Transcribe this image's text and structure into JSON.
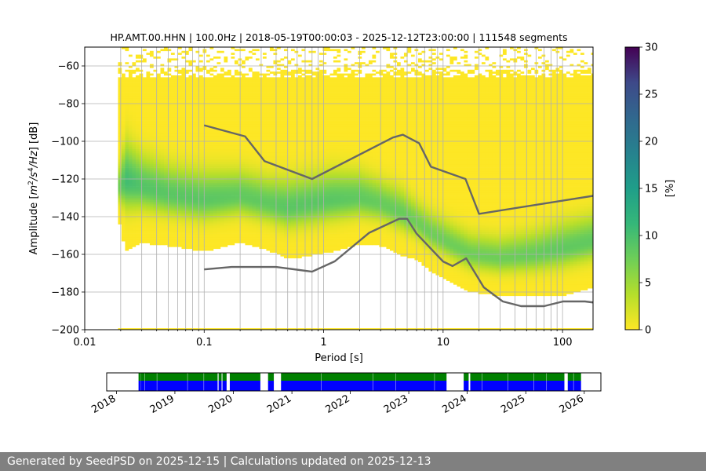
{
  "chart_data": {
    "type": "heatmap",
    "title": "HP.AMT.00.HHN | 100.0Hz | 2018-05-19T00:00:03 - 2025-12-12T23:00:00 | 111548 segments",
    "xlabel": "Period [s]",
    "ylabel_parts": [
      "Amplitude [",
      "m",
      "2",
      "/s",
      "4",
      "/Hz",
      "] [dB]"
    ],
    "x_scale": "log",
    "xlim": [
      0.01,
      180
    ],
    "ylim": [
      -200,
      -50
    ],
    "x_ticks": [
      0.01,
      0.1,
      1,
      10,
      100
    ],
    "x_tick_labels": [
      "0.01",
      "0.1",
      "1",
      "10",
      "100"
    ],
    "y_ticks": [
      -200,
      -180,
      -160,
      -140,
      -120,
      -100,
      -80,
      -60
    ],
    "y_tick_labels": [
      "−200",
      "−180",
      "−160",
      "−140",
      "−120",
      "−100",
      "−80",
      "−60"
    ],
    "grid": true,
    "colorbar": {
      "label": "[%]",
      "range": [
        0,
        30
      ],
      "ticks": [
        0,
        5,
        10,
        15,
        20,
        25,
        30
      ],
      "tick_labels": [
        "0",
        "5",
        "10",
        "15",
        "20",
        "25",
        "30"
      ],
      "colormap": "viridis_r"
    },
    "psd_mode_curve": {
      "period": [
        0.019,
        0.022,
        0.03,
        0.05,
        0.1,
        0.2,
        0.35,
        0.5,
        0.8,
        1.2,
        2,
        3,
        4.5,
        6,
        8,
        12,
        17,
        30,
        60,
        100,
        180
      ],
      "db": [
        -125,
        -121,
        -124,
        -128,
        -131,
        -129,
        -133,
        -135,
        -133,
        -131,
        -130,
        -133,
        -138,
        -143,
        -149,
        -155,
        -160,
        -162,
        -160,
        -157,
        -153
      ]
    },
    "psd_spread_curve": {
      "period": [
        0.019,
        0.022,
        0.03,
        0.05,
        0.1,
        0.2,
        0.35,
        0.5,
        0.8,
        1.2,
        2,
        3,
        4.5,
        6,
        8,
        12,
        17,
        30,
        60,
        100,
        180
      ],
      "hw": [
        6,
        15,
        12,
        11,
        11,
        10,
        10,
        11,
        11,
        11,
        10,
        9,
        9,
        8,
        8,
        8,
        8,
        8,
        9,
        10,
        10
      ]
    },
    "high_noise_model": {
      "period": [
        0.1,
        0.22,
        0.32,
        0.8,
        3.8,
        4.6,
        6.3,
        7.9,
        15.4,
        20,
        354.8
      ],
      "db": [
        -91.5,
        -97.4,
        -110.5,
        -120,
        -98,
        -96.5,
        -101,
        -113.5,
        -120,
        -138.5,
        -126
      ]
    },
    "low_noise_model": {
      "period": [
        0.1,
        0.17,
        0.4,
        0.8,
        1.24,
        2.4,
        4.3,
        5,
        6,
        10,
        12,
        15.6,
        21.9,
        31.6,
        45,
        70,
        101,
        154,
        328
      ],
      "db": [
        -168,
        -166.7,
        -166.7,
        -169.2,
        -163.7,
        -148.6,
        -141.1,
        -141.1,
        -149,
        -163.8,
        -166.2,
        -162.1,
        -177.5,
        -185,
        -187.5,
        -187.5,
        -185,
        -185,
        -187.5
      ]
    },
    "availability": {
      "years": [
        "2018",
        "2019",
        "2020",
        "2021",
        "2022",
        "2023",
        "2024",
        "2025",
        "2026"
      ],
      "time_range": [
        "2017-11-01",
        "2026-04-15"
      ],
      "status_colors": {
        "metadata": "#008000",
        "data": "#0000ff"
      },
      "segments": [
        [
          "2018-05-19",
          "2018-06-01"
        ],
        [
          "2018-06-02",
          "2018-06-25"
        ],
        [
          "2018-06-27",
          "2018-09-10"
        ],
        [
          "2018-09-12",
          "2019-03-20"
        ],
        [
          "2019-03-22",
          "2019-06-30"
        ],
        [
          "2019-07-02",
          "2019-09-25"
        ],
        [
          "2019-10-01",
          "2019-10-20"
        ],
        [
          "2019-10-25",
          "2019-11-20"
        ],
        [
          "2019-12-10",
          "2020-06-18"
        ],
        [
          "2020-08-05",
          "2020-09-10"
        ],
        [
          "2020-10-25",
          "2021-07-01"
        ],
        [
          "2021-07-03",
          "2022-05-20"
        ],
        [
          "2022-05-22",
          "2022-10-10"
        ],
        [
          "2022-10-12",
          "2023-06-10"
        ],
        [
          "2023-06-12",
          "2023-08-25"
        ],
        [
          "2023-12-10",
          "2024-01-10"
        ],
        [
          "2024-01-20",
          "2024-04-01"
        ],
        [
          "2024-04-03",
          "2024-09-10"
        ],
        [
          "2024-09-12",
          "2025-02-20"
        ],
        [
          "2025-02-22",
          "2025-05-10"
        ],
        [
          "2025-05-12",
          "2025-08-30"
        ],
        [
          "2025-09-20",
          "2025-10-25"
        ],
        [
          "2025-10-27",
          "2025-12-12"
        ]
      ]
    }
  },
  "footer": {
    "text": "Generated by SeedPSD on 2025-12-15 | Calculations updated on 2025-12-13"
  }
}
